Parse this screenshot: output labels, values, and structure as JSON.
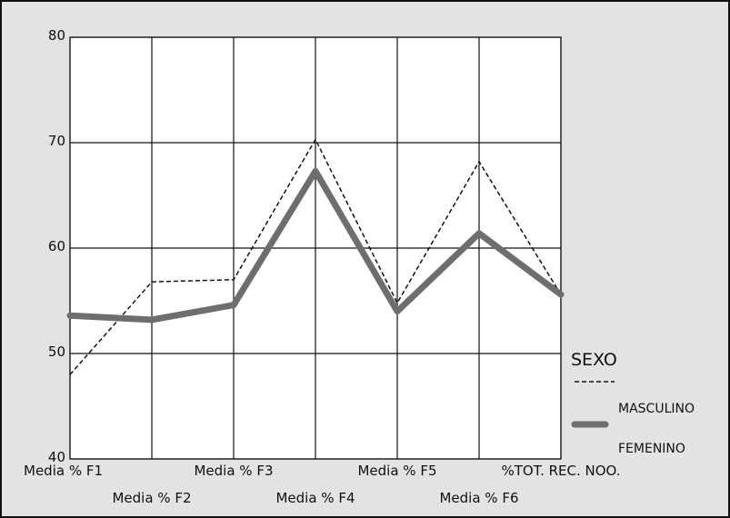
{
  "chart_data": {
    "type": "line",
    "categories": [
      "Media % F1",
      "Media % F2",
      "Media % F3",
      "Media % F4",
      "Media % F5",
      "Media % F6",
      "%TOT. REC. NOO."
    ],
    "series": [
      {
        "name": "MASCULINO",
        "values": [
          48.0,
          56.8,
          57.0,
          70.3,
          54.8,
          68.2,
          55.6
        ],
        "color": "#111111",
        "style": "dashed"
      },
      {
        "name": "FEMENINO",
        "values": [
          53.6,
          53.2,
          54.6,
          67.3,
          54.0,
          61.4,
          55.6
        ],
        "color": "#6e6e6e",
        "style": "solid-thick"
      }
    ],
    "ylim": [
      40,
      80
    ],
    "yticks": [
      "40",
      "50",
      "60",
      "70",
      "80"
    ],
    "xlabel": "",
    "ylabel": "",
    "title": "",
    "grid": true,
    "legend": {
      "title": "SEXO",
      "placement": "right"
    }
  }
}
